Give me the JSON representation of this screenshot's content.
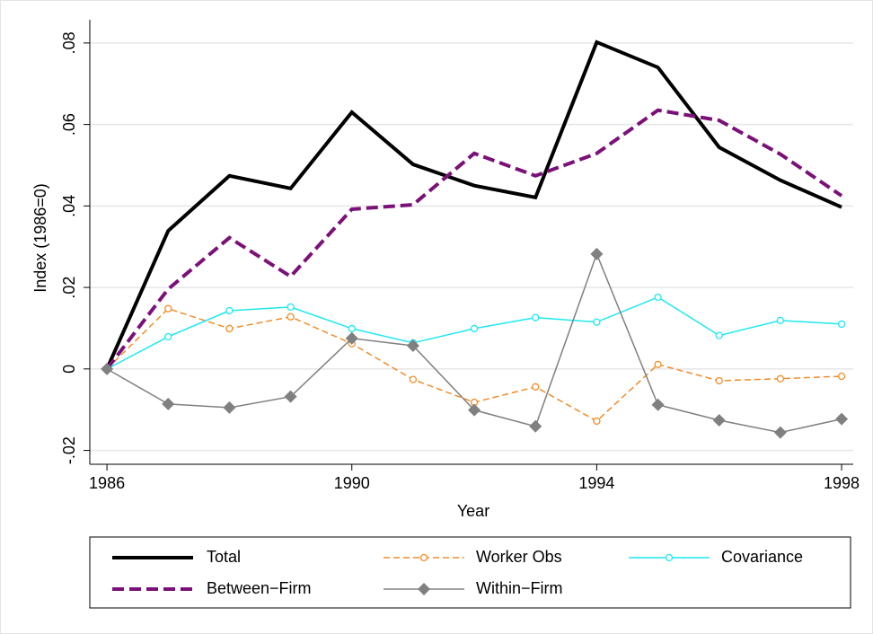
{
  "chart_data": {
    "type": "line",
    "x_label": "Year",
    "y_label": "Index (1986=0)",
    "x": [
      1986,
      1987,
      1988,
      1989,
      1990,
      1991,
      1992,
      1993,
      1994,
      1995,
      1996,
      1997,
      1998
    ],
    "xlim": [
      1985.72,
      1998.19
    ],
    "xticks": [
      1986,
      1990,
      1994,
      1998
    ],
    "ylim": [
      -0.0234,
      0.0857
    ],
    "yticks": [
      {
        "value": -0.02,
        "label": "-.02"
      },
      0,
      {
        "value": 0.02,
        "label": ".02"
      },
      {
        "value": 0.04,
        "label": ".04"
      },
      {
        "value": 0.06,
        "label": ".06"
      },
      {
        "value": 0.08,
        "label": ".08"
      }
    ],
    "grid": true,
    "legend": "bottom",
    "series": [
      {
        "name": "Total",
        "color": "#000000",
        "width": 4,
        "dash": "solid",
        "marker": "none",
        "values": [
          0,
          0.0339,
          0.0474,
          0.0443,
          0.063,
          0.0502,
          0.045,
          0.0421,
          0.0802,
          0.074,
          0.0544,
          0.0463,
          0.0397
        ]
      },
      {
        "name": "Worker Obs",
        "color": "#f28c28",
        "width": 1.5,
        "dash": "dashed",
        "marker": "hollow-circle",
        "values": [
          0,
          0.0148,
          0.0099,
          0.0128,
          0.0062,
          -0.0026,
          -0.0082,
          -0.0044,
          -0.0128,
          0.0011,
          -0.0029,
          -0.0024,
          -0.0018
        ]
      },
      {
        "name": "Covariance",
        "color": "#1ee8f0",
        "width": 1.5,
        "dash": "solid",
        "marker": "hollow-circle",
        "values": [
          0,
          0.0079,
          0.0143,
          0.0152,
          0.0099,
          0.0064,
          0.0099,
          0.0126,
          0.0115,
          0.0176,
          0.0082,
          0.0119,
          0.011
        ]
      },
      {
        "name": "Between−Firm",
        "color": "#7b1178",
        "width": 4,
        "dash": "long-dash",
        "marker": "none",
        "values": [
          0,
          0.0196,
          0.0322,
          0.0227,
          0.0392,
          0.0403,
          0.0529,
          0.0474,
          0.0529,
          0.0635,
          0.061,
          0.0527,
          0.0425
        ]
      },
      {
        "name": "Within−Firm",
        "color": "#808080",
        "width": 1.5,
        "dash": "solid",
        "marker": "diamond",
        "values": [
          0,
          -0.0086,
          -0.0095,
          -0.0068,
          0.0075,
          0.0057,
          -0.0101,
          -0.0141,
          0.0282,
          -0.0088,
          -0.0126,
          -0.0156,
          -0.0123
        ]
      }
    ]
  }
}
